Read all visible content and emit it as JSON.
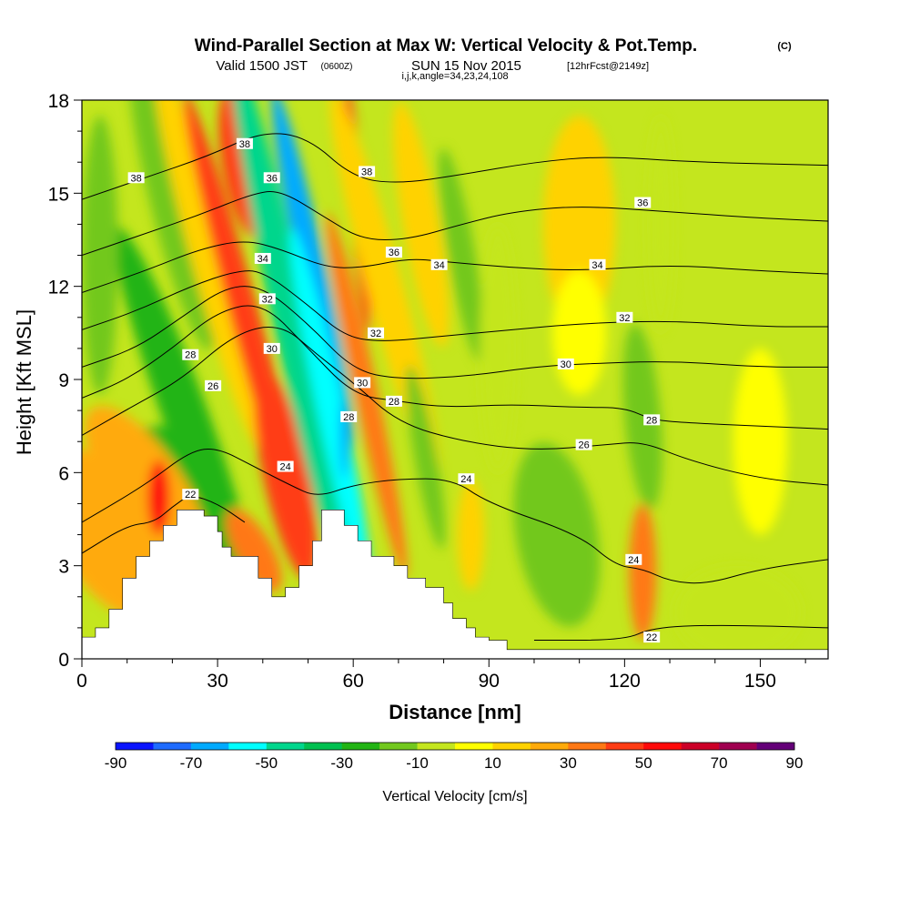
{
  "title": {
    "main": "Wind-Parallel Section at Max W: Vertical Velocity & Pot.Temp.",
    "copyright": "(C)",
    "valid_a": "Valid 1500 JST",
    "valid_z": "(0600Z)",
    "valid_b": "SUN 15 Nov 2015",
    "fcst": "[12hrFcst@2149z]",
    "ijk": "i,j,k,angle=34,23,24,108"
  },
  "chart_data": {
    "type": "heatmap",
    "xlabel": "Distance [nm]",
    "ylabel": "Height [Kft MSL]",
    "xlim": [
      0,
      165
    ],
    "ylim": [
      0,
      18
    ],
    "x_ticks": [
      0,
      30,
      60,
      90,
      120,
      150
    ],
    "y_ticks": [
      0,
      3,
      6,
      9,
      12,
      15,
      18
    ],
    "colorbar": {
      "label": "Vertical Velocity [cm/s]",
      "tick_labels": [
        "-90",
        "-70",
        "-50",
        "-30",
        "-10",
        "10",
        "30",
        "50",
        "70",
        "90"
      ],
      "levels": [
        -90,
        -80,
        -70,
        -60,
        -50,
        -40,
        -30,
        -20,
        -10,
        0,
        10,
        20,
        30,
        40,
        50,
        60,
        70,
        80,
        90
      ],
      "colors": [
        "#0a14ff",
        "#1e6bff",
        "#00aaff",
        "#00ffff",
        "#00d68c",
        "#00c050",
        "#22b414",
        "#72c81e",
        "#c4e61e",
        "#ffff00",
        "#ffd200",
        "#ffaa0a",
        "#ff7814",
        "#ff3c14",
        "#ff0a0a",
        "#cc0028",
        "#a00050",
        "#640078"
      ]
    },
    "terrain": [
      [
        0,
        0.7
      ],
      [
        3,
        0.7
      ],
      [
        3,
        1.0
      ],
      [
        6,
        1.0
      ],
      [
        6,
        1.6
      ],
      [
        9,
        1.6
      ],
      [
        9,
        2.6
      ],
      [
        12,
        2.6
      ],
      [
        12,
        3.3
      ],
      [
        15,
        3.3
      ],
      [
        15,
        3.8
      ],
      [
        18,
        3.8
      ],
      [
        18,
        4.3
      ],
      [
        21,
        4.3
      ],
      [
        21,
        4.8
      ],
      [
        27,
        4.8
      ],
      [
        27,
        4.6
      ],
      [
        30,
        4.6
      ],
      [
        30,
        4.1
      ],
      [
        31,
        4.1
      ],
      [
        31,
        3.6
      ],
      [
        33,
        3.6
      ],
      [
        33,
        3.3
      ],
      [
        39,
        3.3
      ],
      [
        39,
        2.6
      ],
      [
        42,
        2.6
      ],
      [
        42,
        2.0
      ],
      [
        45,
        2.0
      ],
      [
        45,
        2.3
      ],
      [
        48,
        2.3
      ],
      [
        48,
        3.0
      ],
      [
        51,
        3.0
      ],
      [
        51,
        3.8
      ],
      [
        53,
        3.8
      ],
      [
        53,
        4.8
      ],
      [
        58,
        4.8
      ],
      [
        58,
        4.3
      ],
      [
        61,
        4.3
      ],
      [
        61,
        3.8
      ],
      [
        64,
        3.8
      ],
      [
        64,
        3.3
      ],
      [
        69,
        3.3
      ],
      [
        69,
        3.0
      ],
      [
        72,
        3.0
      ],
      [
        72,
        2.6
      ],
      [
        76,
        2.6
      ],
      [
        76,
        2.3
      ],
      [
        80,
        2.3
      ],
      [
        80,
        1.8
      ],
      [
        82,
        1.8
      ],
      [
        82,
        1.3
      ],
      [
        85,
        1.3
      ],
      [
        85,
        1.0
      ],
      [
        87,
        1.0
      ],
      [
        87,
        0.7
      ],
      [
        90,
        0.7
      ],
      [
        90,
        0.6
      ],
      [
        94,
        0.6
      ],
      [
        94,
        0.3
      ],
      [
        165,
        0.3
      ]
    ],
    "wcells": [
      {
        "x": 20,
        "y": 4.8,
        "sx": 12,
        "sy": 2.8,
        "rot": -20,
        "w": -24
      },
      {
        "x": 23,
        "y": 7.8,
        "sx": 5,
        "sy": 6.5,
        "rot": -20,
        "w": -24
      },
      {
        "x": 20,
        "y": 14.8,
        "sx": 5,
        "sy": 5,
        "rot": -14,
        "w": -20
      },
      {
        "x": 4,
        "y": 13,
        "sx": 4,
        "sy": 4.5,
        "rot": 0,
        "w": -20
      },
      {
        "x": 6,
        "y": 4,
        "sx": 11,
        "sy": 3,
        "rot": -30,
        "w": 22
      },
      {
        "x": 14,
        "y": 5.6,
        "sx": 8,
        "sy": 3,
        "rot": -35,
        "w": 26
      },
      {
        "x": 17,
        "y": 5.2,
        "sx": 2.5,
        "sy": 1.2,
        "rot": 0,
        "w": 50
      },
      {
        "x": 28,
        "y": 13,
        "sx": 4,
        "sy": 6.5,
        "rot": -15,
        "w": 12
      },
      {
        "x": 36,
        "y": 16,
        "sx": 5,
        "sy": 2.5,
        "rot": -10,
        "w": 44
      },
      {
        "x": 37,
        "y": 10.5,
        "sx": 3.2,
        "sy": 8,
        "rot": -15,
        "w": 42
      },
      {
        "x": 45,
        "y": 6,
        "sx": 5,
        "sy": 3.5,
        "rot": -12,
        "w": 45
      },
      {
        "x": 38,
        "y": 3.5,
        "sx": 4,
        "sy": 1.5,
        "rot": -30,
        "w": 30
      },
      {
        "x": 46,
        "y": 11,
        "sx": 4,
        "sy": 9,
        "rot": -12,
        "w": -44
      },
      {
        "x": 51,
        "y": 12.5,
        "sx": 3,
        "sy": 6,
        "rot": -12,
        "w": -66
      },
      {
        "x": 55,
        "y": 8,
        "sx": 3,
        "sy": 6,
        "rot": -12,
        "w": -60
      },
      {
        "x": 58,
        "y": 7.2,
        "sx": 1,
        "sy": 1.4,
        "rot": 0,
        "w": -70
      },
      {
        "x": 61,
        "y": 14.5,
        "sx": 1.6,
        "sy": 4,
        "rot": -5,
        "w": 45
      },
      {
        "x": 63,
        "y": 8.5,
        "sx": 2.5,
        "sy": 6,
        "rot": -12,
        "w": 30
      },
      {
        "x": 67,
        "y": 12,
        "sx": 4,
        "sy": 6.5,
        "rot": -15,
        "w": 18
      },
      {
        "x": 75,
        "y": 14,
        "sx": 4,
        "sy": 4,
        "rot": -10,
        "w": 16
      },
      {
        "x": 76,
        "y": 6.5,
        "sx": 2.5,
        "sy": 3,
        "rot": -10,
        "w": -14
      },
      {
        "x": 84,
        "y": 13,
        "sx": 3,
        "sy": 3.5,
        "rot": -10,
        "w": -18
      },
      {
        "x": 86,
        "y": 4,
        "sx": 3,
        "sy": 1.8,
        "rot": 0,
        "w": 18
      },
      {
        "x": 92,
        "y": 10,
        "sx": 4,
        "sy": 4,
        "rot": 0,
        "w": -8
      },
      {
        "x": 105,
        "y": 4,
        "sx": 9,
        "sy": 3,
        "rot": -10,
        "w": -14
      },
      {
        "x": 110,
        "y": 14,
        "sx": 8,
        "sy": 3.5,
        "rot": 0,
        "w": 14
      },
      {
        "x": 110,
        "y": 10.5,
        "sx": 6,
        "sy": 2,
        "rot": 0,
        "w": 8
      },
      {
        "x": 124,
        "y": 7.8,
        "sx": 4,
        "sy": 3,
        "rot": -5,
        "w": -16
      },
      {
        "x": 124,
        "y": 2.8,
        "sx": 3,
        "sy": 2.2,
        "rot": 0,
        "w": 30
      },
      {
        "x": 150,
        "y": 7,
        "sx": 6,
        "sy": 3,
        "rot": 0,
        "w": 8
      },
      {
        "x": 128,
        "y": 14,
        "sx": 3,
        "sy": 3.5,
        "rot": 0,
        "w": -6
      },
      {
        "x": 145,
        "y": 1.5,
        "sx": 14,
        "sy": 1.5,
        "rot": 0,
        "w": -3
      }
    ],
    "contours": [
      {
        "label": "22",
        "pts": [
          [
            0,
            3.4
          ],
          [
            10,
            4.3
          ],
          [
            16,
            4.4
          ],
          [
            20,
            4.9
          ],
          [
            24,
            5.3
          ],
          [
            30,
            5.0
          ],
          [
            36,
            4.4
          ]
        ],
        "lpos": [
          24,
          5.3
        ]
      },
      {
        "label": "22",
        "pts": [
          [
            100,
            0.6
          ],
          [
            120,
            0.6
          ],
          [
            126,
            1.0
          ],
          [
            140,
            1.1
          ],
          [
            165,
            1.0
          ]
        ],
        "lpos": [
          126,
          0.7
        ]
      },
      {
        "label": "24",
        "pts": [
          [
            0,
            4.4
          ],
          [
            14,
            5.6
          ],
          [
            24,
            6.7
          ],
          [
            30,
            6.8
          ],
          [
            38,
            6.2
          ],
          [
            46,
            5.6
          ],
          [
            52,
            5.2
          ],
          [
            60,
            5.6
          ],
          [
            70,
            5.8
          ],
          [
            82,
            5.8
          ],
          [
            90,
            5.0
          ],
          [
            110,
            4.0
          ],
          [
            118,
            3.0
          ],
          [
            124,
            2.9
          ],
          [
            130,
            2.5
          ],
          [
            138,
            2.4
          ],
          [
            150,
            2.9
          ],
          [
            165,
            3.2
          ]
        ],
        "lpos": [
          45,
          6.2
        ]
      },
      {
        "label": "26",
        "pts": [
          [
            0,
            7.2
          ],
          [
            12,
            8.2
          ],
          [
            22,
            9.0
          ],
          [
            34,
            10.5
          ],
          [
            44,
            10.8
          ],
          [
            52,
            9.8
          ],
          [
            60,
            8.9
          ],
          [
            70,
            7.6
          ],
          [
            84,
            7.0
          ],
          [
            100,
            6.7
          ],
          [
            116,
            6.9
          ],
          [
            124,
            7.0
          ],
          [
            134,
            6.4
          ],
          [
            150,
            5.8
          ],
          [
            165,
            5.6
          ]
        ],
        "lpos": [
          29,
          8.8
        ]
      },
      {
        "label": "28",
        "pts": [
          [
            0,
            8.4
          ],
          [
            10,
            9.0
          ],
          [
            20,
            10.0
          ],
          [
            30,
            11.2
          ],
          [
            40,
            11.5
          ],
          [
            50,
            10.0
          ],
          [
            60,
            8.5
          ],
          [
            70,
            8.3
          ],
          [
            80,
            8.1
          ],
          [
            95,
            8.2
          ],
          [
            110,
            8.1
          ],
          [
            120,
            8.1
          ],
          [
            126,
            7.7
          ],
          [
            134,
            7.6
          ],
          [
            150,
            7.5
          ],
          [
            165,
            7.4
          ]
        ],
        "lpos": [
          24,
          9.8
        ]
      },
      {
        "label": "30",
        "pts": [
          [
            0,
            9.4
          ],
          [
            12,
            10.0
          ],
          [
            22,
            11.0
          ],
          [
            32,
            12.0
          ],
          [
            40,
            12.0
          ],
          [
            50,
            10.8
          ],
          [
            60,
            9.3
          ],
          [
            70,
            9.0
          ],
          [
            85,
            9.1
          ],
          [
            100,
            9.4
          ],
          [
            110,
            9.5
          ],
          [
            130,
            9.6
          ],
          [
            150,
            9.4
          ],
          [
            165,
            9.4
          ]
        ],
        "lpos": [
          42,
          10.0
        ]
      },
      {
        "label": "32",
        "pts": [
          [
            0,
            10.6
          ],
          [
            12,
            11.2
          ],
          [
            24,
            12.0
          ],
          [
            34,
            12.5
          ],
          [
            40,
            12.5
          ],
          [
            50,
            11.4
          ],
          [
            58,
            10.4
          ],
          [
            66,
            10.2
          ],
          [
            80,
            10.4
          ],
          [
            95,
            10.6
          ],
          [
            110,
            10.8
          ],
          [
            130,
            10.9
          ],
          [
            150,
            10.7
          ],
          [
            165,
            10.7
          ]
        ],
        "lpos": [
          41,
          11.6
        ]
      },
      {
        "label": "34",
        "pts": [
          [
            0,
            11.8
          ],
          [
            14,
            12.5
          ],
          [
            26,
            13.2
          ],
          [
            36,
            13.5
          ],
          [
            44,
            13.2
          ],
          [
            54,
            12.6
          ],
          [
            62,
            12.6
          ],
          [
            72,
            12.9
          ],
          [
            80,
            12.8
          ],
          [
            95,
            12.6
          ],
          [
            110,
            12.5
          ],
          [
            130,
            12.7
          ],
          [
            150,
            12.5
          ],
          [
            165,
            12.4
          ]
        ],
        "lpos": [
          40,
          12.9
        ]
      },
      {
        "label": "36",
        "pts": [
          [
            0,
            13.0
          ],
          [
            14,
            13.7
          ],
          [
            26,
            14.3
          ],
          [
            38,
            15.0
          ],
          [
            44,
            15.1
          ],
          [
            54,
            14.2
          ],
          [
            62,
            13.5
          ],
          [
            72,
            13.5
          ],
          [
            84,
            14.0
          ],
          [
            95,
            14.4
          ],
          [
            110,
            14.6
          ],
          [
            130,
            14.4
          ],
          [
            150,
            14.2
          ],
          [
            165,
            14.1
          ]
        ],
        "lpos": [
          42,
          15.5
        ]
      },
      {
        "label": "38",
        "pts": [
          [
            0,
            14.8
          ],
          [
            14,
            15.5
          ],
          [
            28,
            16.2
          ],
          [
            40,
            17.0
          ],
          [
            50,
            16.8
          ],
          [
            60,
            15.5
          ],
          [
            70,
            15.3
          ],
          [
            84,
            15.6
          ],
          [
            100,
            16.0
          ],
          [
            115,
            16.2
          ],
          [
            135,
            16.0
          ],
          [
            165,
            15.9
          ]
        ],
        "lpos": [
          12,
          15.5
        ]
      }
    ],
    "extra_labels": [
      {
        "label": "38",
        "x": 36,
        "y": 16.6
      },
      {
        "label": "38",
        "x": 63,
        "y": 15.7
      },
      {
        "label": "36",
        "x": 69,
        "y": 13.1
      },
      {
        "label": "36",
        "x": 124,
        "y": 14.7
      },
      {
        "label": "34",
        "x": 79,
        "y": 12.7
      },
      {
        "label": "34",
        "x": 114,
        "y": 12.7
      },
      {
        "label": "32",
        "x": 65,
        "y": 10.5
      },
      {
        "label": "32",
        "x": 120,
        "y": 11.0
      },
      {
        "label": "30",
        "x": 62,
        "y": 8.9
      },
      {
        "label": "30",
        "x": 107,
        "y": 9.5
      },
      {
        "label": "28",
        "x": 59,
        "y": 7.8
      },
      {
        "label": "28",
        "x": 69,
        "y": 8.3
      },
      {
        "label": "28",
        "x": 126,
        "y": 7.7
      },
      {
        "label": "26",
        "x": 111,
        "y": 6.9
      },
      {
        "label": "24",
        "x": 85,
        "y": 5.8
      },
      {
        "label": "24",
        "x": 122,
        "y": 3.2
      }
    ]
  }
}
